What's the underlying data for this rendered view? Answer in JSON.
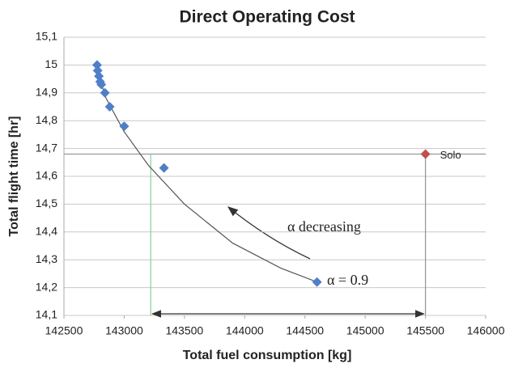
{
  "chart_data": {
    "type": "scatter",
    "title": "Direct Operating Cost",
    "xlabel": "Total fuel consumption [kg]",
    "ylabel": "Total flight time [hr]",
    "xlim": [
      142500,
      146000
    ],
    "xticks": [
      142500,
      143000,
      143500,
      144000,
      144500,
      145000,
      145500,
      146000
    ],
    "ylim": [
      14.1,
      15.1
    ],
    "yticks": [
      {
        "value": 14.1,
        "label": "14,1"
      },
      {
        "value": 14.2,
        "label": "14,2"
      },
      {
        "value": 14.3,
        "label": "14,3"
      },
      {
        "value": 14.4,
        "label": "14,4"
      },
      {
        "value": 14.5,
        "label": "14,5"
      },
      {
        "value": 14.6,
        "label": "14,6"
      },
      {
        "value": 14.7,
        "label": "14,7"
      },
      {
        "value": 14.8,
        "label": "14,8"
      },
      {
        "value": 14.9,
        "label": "14,9"
      },
      15,
      {
        "value": 15.1,
        "label": "15,1"
      }
    ],
    "grid": true,
    "series": [
      {
        "color": "#4f7fc7",
        "x": [
          142775,
          142780,
          142790,
          142800,
          142810,
          142840,
          142880,
          143000,
          143330,
          144600
        ],
        "values": [
          15.0,
          14.98,
          14.96,
          14.94,
          14.93,
          14.9,
          14.85,
          14.78,
          14.63,
          14.22
        ]
      },
      {
        "color": "#c0504d",
        "x": [
          145500
        ],
        "values": [
          14.68
        ]
      }
    ],
    "curve": {
      "color": "#555555",
      "x": [
        142760,
        142850,
        143000,
        143200,
        143500,
        143900,
        144300,
        144600
      ],
      "values": [
        15.0,
        14.88,
        14.76,
        14.64,
        14.5,
        14.36,
        14.27,
        14.22
      ]
    },
    "reference_lines": {
      "hline": 14.68,
      "hcolor": "#999999",
      "vlines": [
        {
          "value": 143220,
          "color": "#8fd59a"
        },
        {
          "value": 145500,
          "color": "#999999"
        }
      ]
    },
    "annotations": {
      "solo": "Solo",
      "alpha_decreasing": "α decreasing",
      "alpha_value": "α = 0.9"
    }
  }
}
